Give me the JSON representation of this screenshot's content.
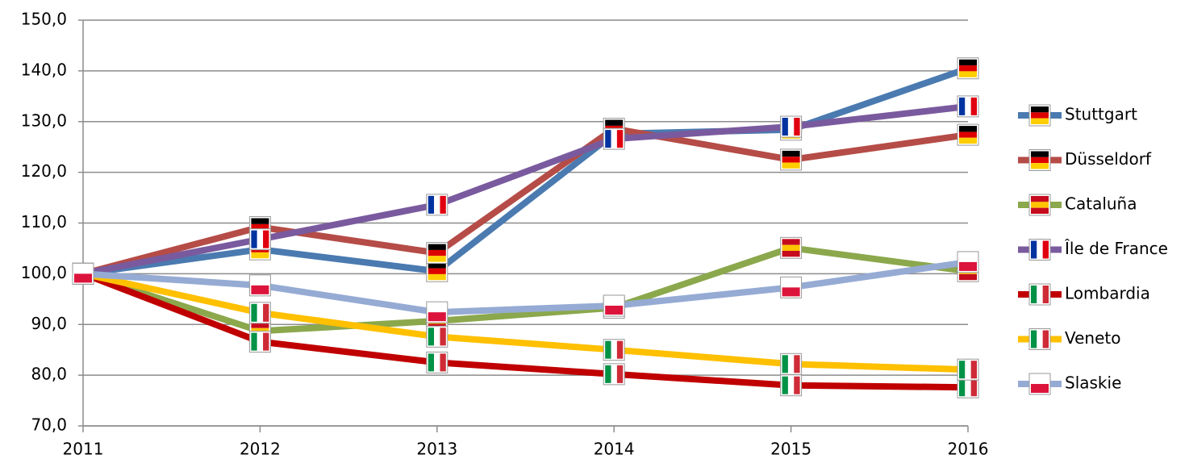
{
  "chart_data": {
    "type": "line",
    "x": [
      2011,
      2012,
      2013,
      2014,
      2015,
      2016
    ],
    "xlim": [
      2011,
      2016
    ],
    "xticks": [
      2011,
      2012,
      2013,
      2014,
      2015,
      2016
    ],
    "ylim": [
      70,
      150
    ],
    "yticks": [
      {
        "value": 70,
        "label": "70,0"
      },
      {
        "value": 80,
        "label": "80,0"
      },
      {
        "value": 90,
        "label": "90,0"
      },
      {
        "value": 100,
        "label": "100,0"
      },
      {
        "value": 110,
        "label": "110,0"
      },
      {
        "value": 120,
        "label": "120,0"
      },
      {
        "value": 130,
        "label": "130,0"
      },
      {
        "value": 140,
        "label": "140,0"
      },
      {
        "value": 150,
        "label": "150,0"
      }
    ],
    "grid": true,
    "legend": "right",
    "series": [
      {
        "name": "Stuttgart",
        "color": "#4a7ab0",
        "marker": {
          "stripes": "horizontal",
          "colors": [
            "#000000",
            "#dd0000",
            "#ffce00"
          ]
        },
        "values": [
          100,
          104.8,
          100.5,
          127.6,
          128.4,
          140.5
        ]
      },
      {
        "name": "Düsseldorf",
        "color": "#b54c47",
        "marker": {
          "stripes": "horizontal",
          "colors": [
            "#000000",
            "#dd0000",
            "#ffce00"
          ]
        },
        "values": [
          100,
          109.2,
          104.1,
          128.6,
          122.5,
          127.4
        ]
      },
      {
        "name": "Cataluña",
        "color": "#8ba84c",
        "marker": {
          "stripes": "horizontal",
          "colors": [
            "#c60b1e",
            "#ffc400",
            "#c60b1e"
          ]
        },
        "values": [
          100,
          88.7,
          90.7,
          93.3,
          105.1,
          100.5
        ]
      },
      {
        "name": "Île de France",
        "color": "#7a5a9e",
        "marker": {
          "stripes": "vertical",
          "colors": [
            "#0033a0",
            "#ffffff",
            "#e1000f"
          ]
        },
        "values": [
          100,
          106.8,
          113.6,
          126.6,
          129,
          133
        ]
      },
      {
        "name": "Lombardia",
        "color": "#c00000",
        "marker": {
          "stripes": "vertical",
          "colors": [
            "#009246",
            "#ffffff",
            "#ce2b37"
          ]
        },
        "values": [
          100,
          86.6,
          82.5,
          80.2,
          78,
          77.6
        ]
      },
      {
        "name": "Veneto",
        "color": "#ffc000",
        "marker": {
          "stripes": "vertical",
          "colors": [
            "#009246",
            "#ffffff",
            "#ce2b37"
          ]
        },
        "values": [
          100,
          92.3,
          87.6,
          85,
          82.2,
          81.1
        ]
      },
      {
        "name": "Slaskie",
        "color": "#95abd4",
        "marker": {
          "stripes": "horizontal",
          "colors": [
            "#ffffff",
            "#dc143c"
          ]
        },
        "values": [
          100,
          97.7,
          92.4,
          93.7,
          97.3,
          102.3
        ]
      }
    ]
  }
}
